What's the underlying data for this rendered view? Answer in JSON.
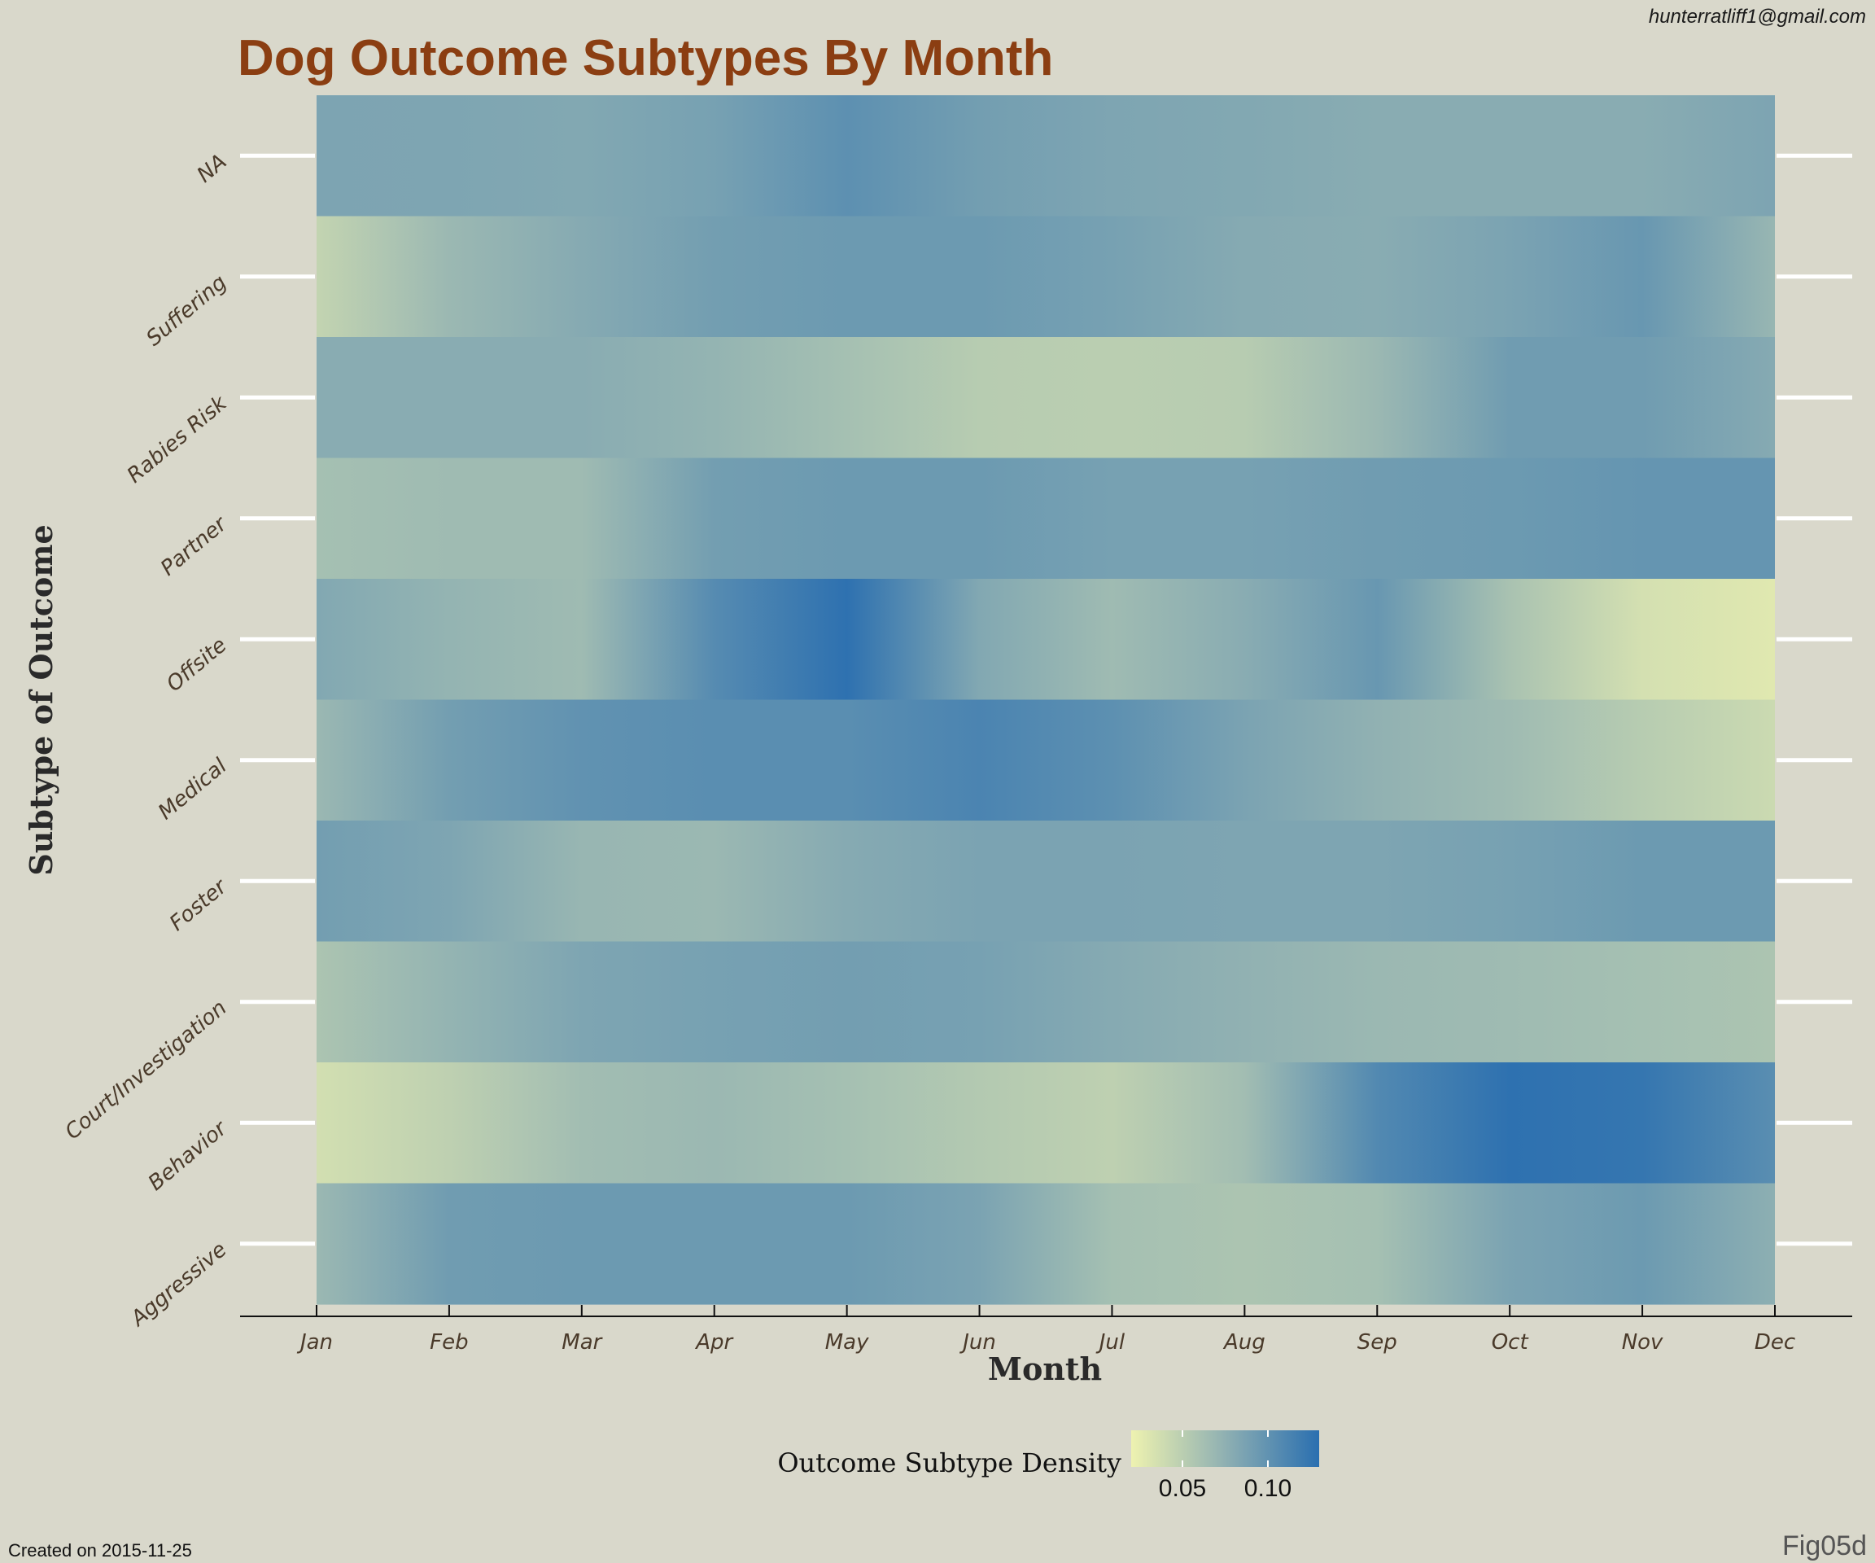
{
  "header": {
    "email": "hunterratliff1@gmail.com"
  },
  "footer": {
    "created": "Created on 2015-11-25",
    "figure_id": "Fig05d"
  },
  "legend": {
    "title": "Outcome Subtype Density",
    "ticks": [
      0.05,
      0.1
    ],
    "tick_labels": [
      "0.05",
      "0.10"
    ],
    "range": [
      0.02,
      0.13
    ],
    "colors": [
      "#eef2b0",
      "#8fb0b2",
      "#2a6fb0"
    ]
  },
  "colors": {
    "background": "#d9d8cb",
    "title": "#8b3e12",
    "low": "#eef2b0",
    "mid": "#8fb0b2",
    "high": "#2a6fb0"
  },
  "chart_data": {
    "type": "heatmap",
    "title": "Dog Outcome Subtypes By Month",
    "xlabel": "Month",
    "ylabel": "Subtype of Outcome",
    "x": [
      "Jan",
      "Feb",
      "Mar",
      "Apr",
      "May",
      "Jun",
      "Jul",
      "Aug",
      "Sep",
      "Oct",
      "Nov",
      "Dec"
    ],
    "y": [
      "NA",
      "Suffering",
      "Rabies Risk",
      "Partner",
      "Offsite",
      "Medical",
      "Foster",
      "Court/Investigation",
      "Behavior",
      "Aggressive"
    ],
    "values": [
      [
        0.085,
        0.084,
        0.082,
        0.088,
        0.102,
        0.09,
        0.084,
        0.082,
        0.078,
        0.078,
        0.078,
        0.085
      ],
      [
        0.045,
        0.068,
        0.08,
        0.09,
        0.094,
        0.094,
        0.088,
        0.08,
        0.078,
        0.086,
        0.096,
        0.07
      ],
      [
        0.078,
        0.078,
        0.078,
        0.072,
        0.062,
        0.052,
        0.05,
        0.052,
        0.068,
        0.092,
        0.092,
        0.08
      ],
      [
        0.062,
        0.066,
        0.066,
        0.09,
        0.094,
        0.094,
        0.088,
        0.088,
        0.092,
        0.094,
        0.098,
        0.098
      ],
      [
        0.082,
        0.072,
        0.066,
        0.106,
        0.128,
        0.082,
        0.066,
        0.078,
        0.096,
        0.06,
        0.035,
        0.028
      ],
      [
        0.068,
        0.09,
        0.1,
        0.104,
        0.104,
        0.112,
        0.102,
        0.086,
        0.074,
        0.066,
        0.052,
        0.04
      ],
      [
        0.09,
        0.084,
        0.07,
        0.068,
        0.08,
        0.086,
        0.086,
        0.084,
        0.084,
        0.088,
        0.094,
        0.094
      ],
      [
        0.058,
        0.072,
        0.084,
        0.088,
        0.09,
        0.088,
        0.08,
        0.074,
        0.068,
        0.066,
        0.062,
        0.058
      ],
      [
        0.036,
        0.048,
        0.064,
        0.068,
        0.062,
        0.054,
        0.048,
        0.064,
        0.108,
        0.128,
        0.124,
        0.104
      ],
      [
        0.068,
        0.092,
        0.094,
        0.094,
        0.094,
        0.086,
        0.062,
        0.058,
        0.062,
        0.086,
        0.094,
        0.076
      ]
    ],
    "zlim": [
      0.02,
      0.13
    ],
    "grid": false,
    "legend_position": "bottom"
  }
}
